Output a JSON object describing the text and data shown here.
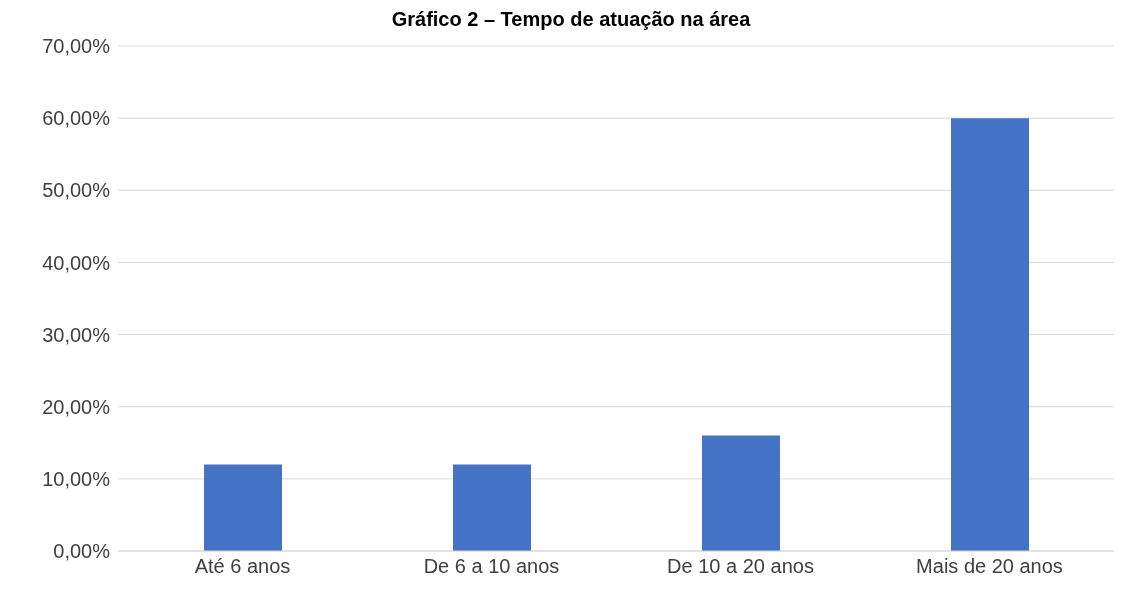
{
  "chart_data": {
    "type": "bar",
    "title": "Gráfico 2 – Tempo de atuação na área",
    "categories": [
      "Até 6 anos",
      "De 6 a 10 anos",
      "De 10 a 20 anos",
      "Mais de 20 anos"
    ],
    "values": [
      12,
      12,
      16,
      60
    ],
    "color": "#4472c4",
    "ylim": [
      0,
      70
    ],
    "yticks": [
      {
        "value": 0,
        "label": "0,00%"
      },
      {
        "value": 10,
        "label": "10,00%"
      },
      {
        "value": 20,
        "label": "20,00%"
      },
      {
        "value": 30,
        "label": "30,00%"
      },
      {
        "value": 40,
        "label": "40,00%"
      },
      {
        "value": 50,
        "label": "50,00%"
      },
      {
        "value": 60,
        "label": "60,00%"
      },
      {
        "value": 70,
        "label": "70,00%"
      }
    ],
    "grid": "y"
  }
}
